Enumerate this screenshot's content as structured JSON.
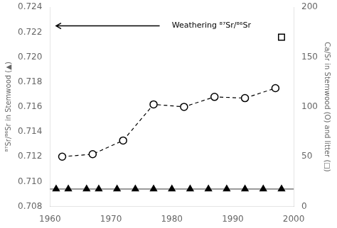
{
  "chart_data": {
    "type": "scatter",
    "ylabel": "⁸⁷Sr/⁸⁶Sr in Stemwood (▲)",
    "y2label": "Ca/Sr in Stemwood (O) and litter (□)",
    "xlim": [
      1960,
      2000
    ],
    "xticks": [
      1960,
      1970,
      1980,
      1990,
      2000
    ],
    "ylim": [
      0.708,
      0.724
    ],
    "yticks": [
      0.708,
      {
        "value": 0.71,
        "label": "0.710"
      },
      0.712,
      0.714,
      0.716,
      0.718,
      {
        "value": 0.72,
        "label": "0.720"
      },
      0.722,
      0.724
    ],
    "y2lim": [
      0,
      200
    ],
    "y2ticks": [
      0,
      50,
      100,
      150,
      200
    ],
    "grid": false,
    "series": [
      {
        "type": "line",
        "color": "#000000",
        "marker": "open_circle",
        "line_style": "dashed",
        "x": [
          1962,
          1967,
          1972,
          1977,
          1982,
          1987,
          1992,
          1997
        ],
        "values": [
          0.712,
          0.7122,
          0.7133,
          0.7162,
          0.716,
          0.7168,
          0.7167,
          0.7175
        ]
      },
      {
        "type": "scatter",
        "color": "#000000",
        "marker": "triangle",
        "x": [
          1961,
          1963,
          1966,
          1968,
          1971,
          1974,
          1977,
          1980,
          1983,
          1986,
          1989,
          1992,
          1995,
          1998
        ],
        "values": [
          0.7094,
          0.7094,
          0.7094,
          0.7094,
          0.7094,
          0.7094,
          0.7094,
          0.7094,
          0.7094,
          0.7094,
          0.7094,
          0.7094,
          0.7094,
          0.7094
        ]
      },
      {
        "type": "scatter",
        "color": "#000000",
        "marker": "open_square",
        "axis": "y2",
        "x": [
          1998
        ],
        "values": [
          170
        ]
      }
    ],
    "reference_lines": [
      {
        "axis": "y",
        "value": 0.7094,
        "color": "#000000"
      }
    ],
    "annotations": [
      {
        "text": "Weathering ⁸⁷Sr/⁸⁶Sr",
        "x": 1980,
        "y": 0.7225,
        "arrow": {
          "from": 1978,
          "to": 1961
        }
      }
    ]
  }
}
